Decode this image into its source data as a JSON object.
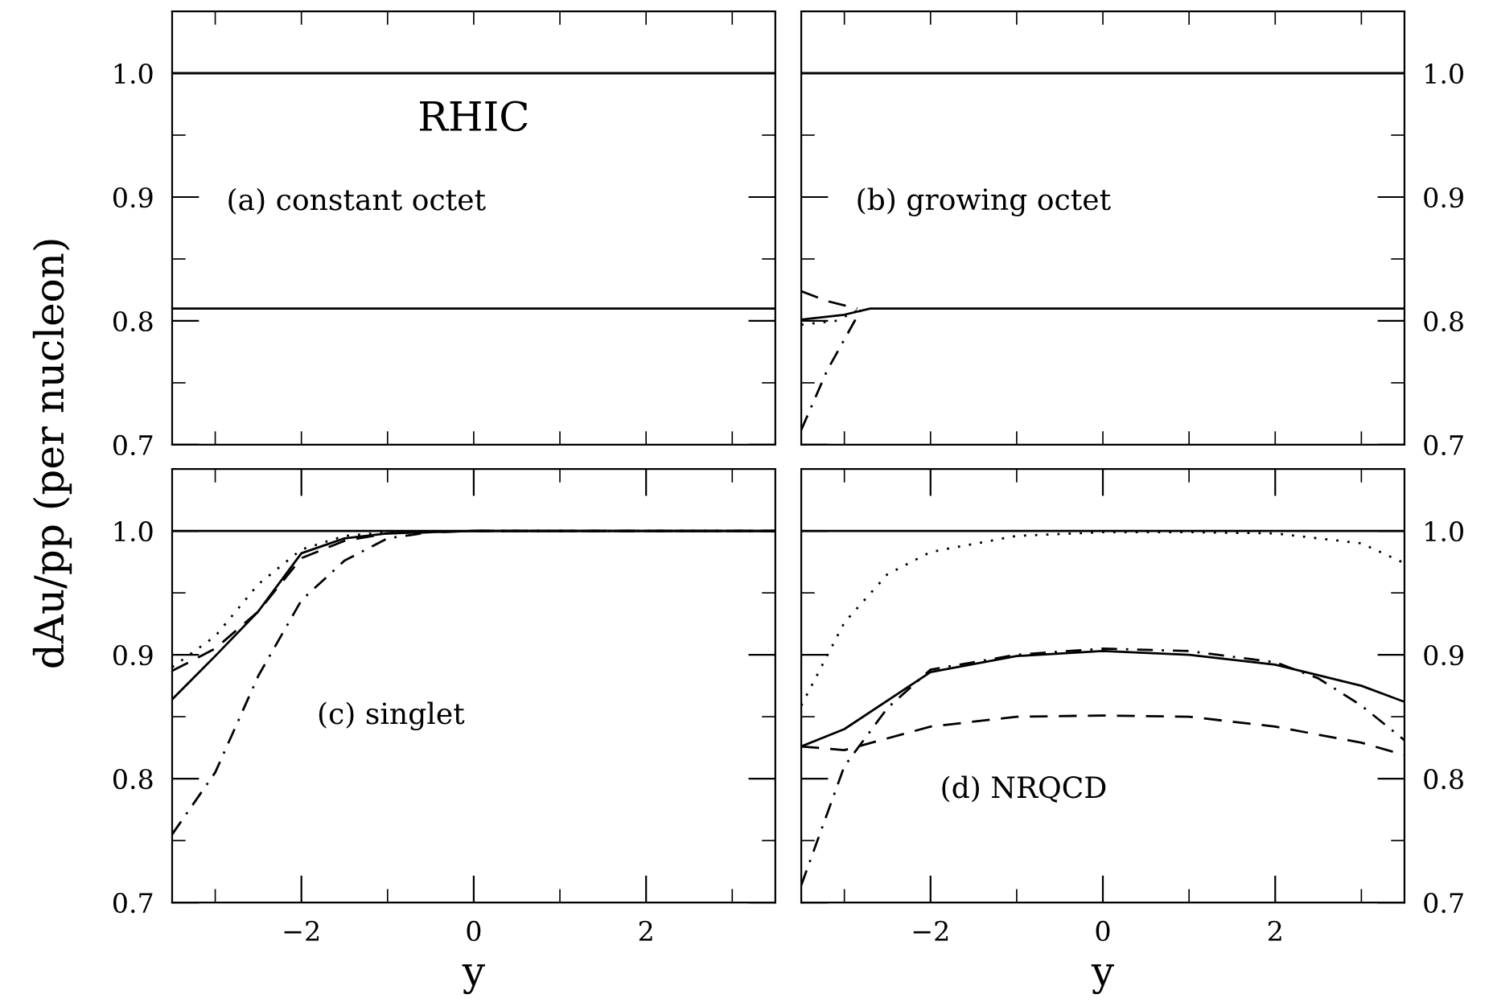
{
  "chart_data": [
    {
      "type": "line",
      "ylabel": "dAu/pp (per nucleon)",
      "annotations": [
        "RHIC",
        "(a) constant octet"
      ],
      "xlim": [
        -3.5,
        3.5
      ],
      "ylim": [
        0.7,
        1.05
      ],
      "xticks": [
        {
          "value": -3,
          "label": null
        },
        {
          "value": -2,
          "label": null
        },
        {
          "value": -1,
          "label": null
        },
        {
          "value": 0,
          "label": null
        },
        {
          "value": 1,
          "label": null
        },
        {
          "value": 2,
          "label": null
        },
        {
          "value": 3,
          "label": null
        }
      ],
      "yticks": [
        0.7,
        {
          "value": 0.75,
          "label": null
        },
        0.8,
        {
          "value": 0.85,
          "label": null
        },
        0.9,
        {
          "value": 0.95,
          "label": null
        },
        {
          "value": 1.0,
          "label": "1.0"
        }
      ],
      "tick_labels": "y",
      "grid": false,
      "legend": false,
      "ref_lines": [
        {
          "axis": "y",
          "value": 1.0,
          "color": "#000000",
          "line_style": "solid"
        }
      ],
      "series": [
        {
          "color": "#000000",
          "line_style": "solid",
          "x": [
            -3.5,
            3.5
          ],
          "values": [
            0.81,
            0.81
          ]
        }
      ]
    },
    {
      "type": "line",
      "annotations": [
        "(b) growing octet"
      ],
      "xlim": [
        -3.5,
        3.5
      ],
      "ylim": [
        0.7,
        1.05
      ],
      "xticks": [
        {
          "value": -3,
          "label": null
        },
        {
          "value": -2,
          "label": null
        },
        {
          "value": -1,
          "label": null
        },
        {
          "value": 0,
          "label": null
        },
        {
          "value": 1,
          "label": null
        },
        {
          "value": 2,
          "label": null
        },
        {
          "value": 3,
          "label": null
        }
      ],
      "yticks": [
        0.7,
        {
          "value": 0.75,
          "label": null
        },
        0.8,
        {
          "value": 0.85,
          "label": null
        },
        0.9,
        {
          "value": 0.95,
          "label": null
        },
        {
          "value": 1.0,
          "label": "1.0"
        }
      ],
      "tick_labels": "y",
      "grid": false,
      "legend": false,
      "ref_lines": [
        {
          "axis": "y",
          "value": 1.0,
          "color": "#000000",
          "line_style": "solid"
        }
      ],
      "series": [
        {
          "color": "#000000",
          "line_style": "solid",
          "x": [
            -3.5,
            -3.0,
            -2.7,
            3.5
          ],
          "values": [
            0.801,
            0.805,
            0.81,
            0.81
          ]
        },
        {
          "color": "#000000",
          "line_style": "dashed",
          "x": [
            -3.5,
            -3.2,
            -2.85
          ],
          "values": [
            0.824,
            0.816,
            0.81
          ]
        },
        {
          "color": "#000000",
          "line_style": "dotted",
          "x": [
            -3.5,
            -3.1,
            -2.8
          ],
          "values": [
            0.797,
            0.8,
            0.81
          ]
        },
        {
          "color": "#000000",
          "line_style": "dashdot",
          "x": [
            -3.5,
            -3.2,
            -2.8
          ],
          "values": [
            0.712,
            0.76,
            0.81
          ]
        }
      ]
    },
    {
      "type": "line",
      "xlabel": "y",
      "annotations": [
        "(c) singlet"
      ],
      "xlim": [
        -3.5,
        3.5
      ],
      "ylim": [
        0.7,
        1.05
      ],
      "xticks": [
        {
          "value": -3,
          "label": null
        },
        {
          "value": -2,
          "label": "−2"
        },
        {
          "value": -1,
          "label": null
        },
        0,
        {
          "value": 1,
          "label": null
        },
        2,
        {
          "value": 3,
          "label": null
        }
      ],
      "yticks": [
        0.7,
        {
          "value": 0.75,
          "label": null
        },
        0.8,
        {
          "value": 0.85,
          "label": null
        },
        0.9,
        {
          "value": 0.95,
          "label": null
        },
        {
          "value": 1.0,
          "label": "1.0"
        }
      ],
      "grid": false,
      "legend": false,
      "ref_lines": [
        {
          "axis": "y",
          "value": 1.0,
          "color": "#000000",
          "line_style": "solid"
        }
      ],
      "series": [
        {
          "color": "#000000",
          "line_style": "solid",
          "x": [
            -3.5,
            -3.0,
            -2.5,
            -2.0,
            -1.5,
            -1.0,
            0,
            3.5
          ],
          "values": [
            0.864,
            0.899,
            0.935,
            0.982,
            0.994,
            0.998,
            1.0,
            1.0
          ]
        },
        {
          "color": "#000000",
          "line_style": "dashed",
          "x": [
            -3.5,
            -3.0,
            -2.5,
            -2.0,
            -1.5,
            -1.0,
            0,
            3.5
          ],
          "values": [
            0.887,
            0.905,
            0.935,
            0.978,
            0.992,
            0.998,
            1.0,
            1.0
          ]
        },
        {
          "color": "#000000",
          "line_style": "dotted",
          "x": [
            -3.5,
            -3.0,
            -2.5,
            -2.0,
            -1.5,
            -1.0,
            0,
            3.5
          ],
          "values": [
            0.89,
            0.915,
            0.957,
            0.985,
            0.996,
            0.999,
            1.0,
            1.0
          ]
        },
        {
          "color": "#000000",
          "line_style": "dashdot",
          "x": [
            -3.5,
            -3.0,
            -2.5,
            -2.0,
            -1.5,
            -1.0,
            -0.5,
            0,
            3.5
          ],
          "values": [
            0.755,
            0.805,
            0.883,
            0.944,
            0.976,
            0.994,
            0.999,
            1.0,
            1.0
          ]
        }
      ]
    },
    {
      "type": "line",
      "xlabel": "y",
      "annotations": [
        "(d) NRQCD"
      ],
      "xlim": [
        -3.5,
        3.5
      ],
      "ylim": [
        0.7,
        1.05
      ],
      "xticks": [
        {
          "value": -3,
          "label": null
        },
        {
          "value": -2,
          "label": "−2"
        },
        {
          "value": -1,
          "label": null
        },
        0,
        {
          "value": 1,
          "label": null
        },
        2,
        {
          "value": 3,
          "label": null
        }
      ],
      "yticks": [
        0.7,
        {
          "value": 0.75,
          "label": null
        },
        0.8,
        {
          "value": 0.85,
          "label": null
        },
        0.9,
        {
          "value": 0.95,
          "label": null
        },
        {
          "value": 1.0,
          "label": "1.0"
        }
      ],
      "grid": false,
      "legend": false,
      "ref_lines": [
        {
          "axis": "y",
          "value": 1.0,
          "color": "#000000",
          "line_style": "solid"
        }
      ],
      "series": [
        {
          "color": "#000000",
          "line_style": "solid",
          "x": [
            -3.5,
            -3,
            -2,
            -1,
            0,
            1,
            2,
            3,
            3.5
          ],
          "values": [
            0.826,
            0.84,
            0.886,
            0.899,
            0.903,
            0.9,
            0.892,
            0.875,
            0.862
          ]
        },
        {
          "color": "#000000",
          "line_style": "dashed",
          "x": [
            -3.5,
            -3,
            -2,
            -1,
            0,
            1,
            2,
            3,
            3.5
          ],
          "values": [
            0.826,
            0.823,
            0.842,
            0.85,
            0.851,
            0.85,
            0.842,
            0.829,
            0.819
          ]
        },
        {
          "color": "#000000",
          "line_style": "dotted",
          "x": [
            -3.5,
            -3,
            -2.5,
            -2,
            -1,
            0,
            1,
            2,
            3,
            3.5
          ],
          "values": [
            0.859,
            0.926,
            0.965,
            0.983,
            0.996,
            0.999,
            0.999,
            0.998,
            0.99,
            0.974
          ]
        },
        {
          "color": "#000000",
          "line_style": "dashdot",
          "x": [
            -3.5,
            -3,
            -2.5,
            -2,
            -1,
            0,
            1,
            2,
            2.5,
            3,
            3.5
          ],
          "values": [
            0.714,
            0.81,
            0.857,
            0.888,
            0.9,
            0.905,
            0.903,
            0.894,
            0.881,
            0.859,
            0.831
          ]
        }
      ]
    }
  ]
}
